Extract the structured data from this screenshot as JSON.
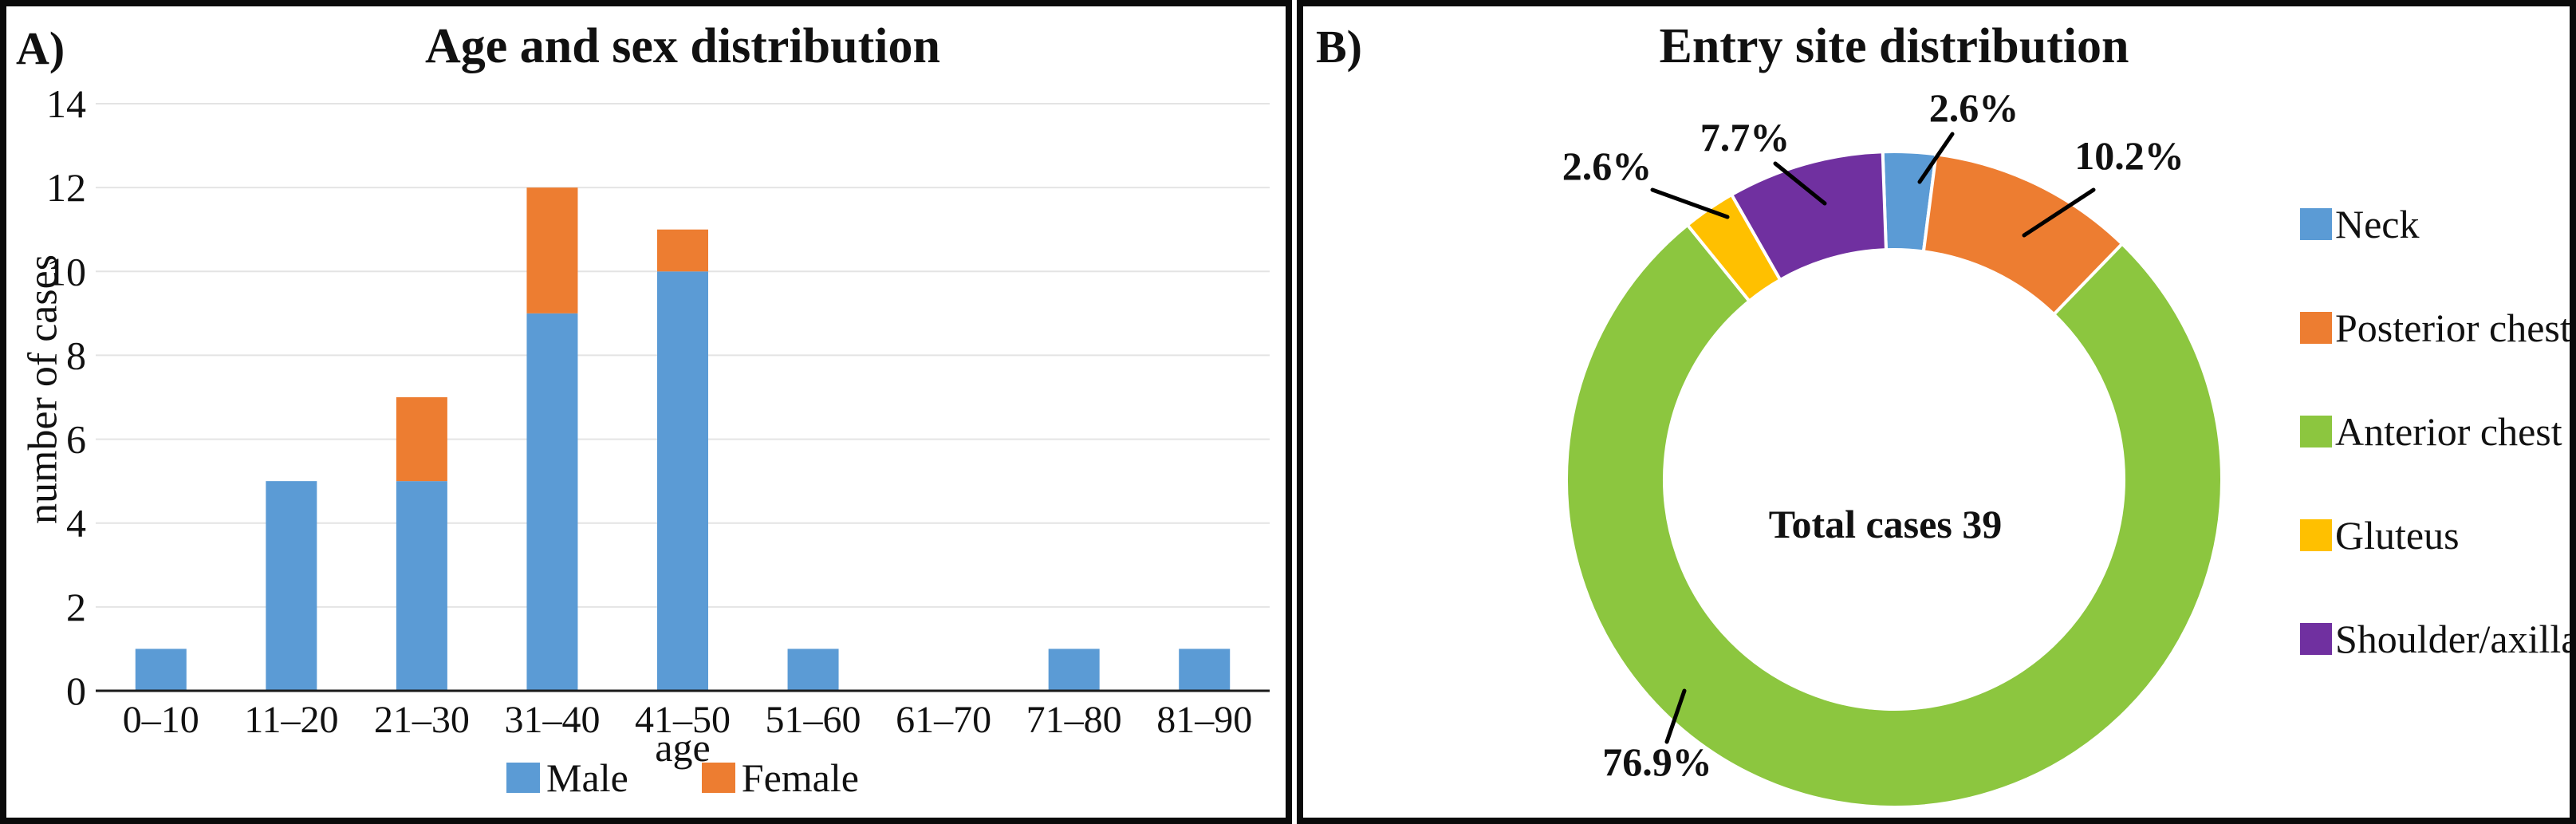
{
  "chart_data": [
    {
      "id": "age_sex",
      "type": "bar",
      "stacked": true,
      "panel_label": "A)",
      "title": "Age and sex distribution",
      "xlabel": "age",
      "ylabel": "number of cases",
      "categories": [
        "0–10",
        "11–20",
        "21–30",
        "31–40",
        "41–50",
        "51–60",
        "61–70",
        "71–80",
        "81–90"
      ],
      "series": [
        {
          "name": "Male",
          "color": "#5B9BD5",
          "values": [
            1,
            5,
            5,
            9,
            10,
            1,
            0,
            1,
            1
          ]
        },
        {
          "name": "Female",
          "color": "#ED7D31",
          "values": [
            0,
            0,
            2,
            3,
            1,
            0,
            0,
            0,
            0
          ]
        }
      ],
      "ylim": [
        0,
        14
      ],
      "ytick_step": 2,
      "yticks": [
        0,
        2,
        4,
        6,
        8,
        10,
        12,
        14
      ],
      "grid": true,
      "gridline_color": "#E4E4E4",
      "axis_color": "#1a1a1a",
      "legend_position": "bottom"
    },
    {
      "id": "entry_site",
      "type": "donut",
      "panel_label": "B)",
      "title": "Entry site distribution",
      "center_text": "Total cases 39",
      "start_angle_deg": -2,
      "legend_position": "right",
      "slices": [
        {
          "label": "Neck",
          "pct": 2.6,
          "pct_label": "2.6%",
          "color": "#5B9BD5",
          "callout": {
            "label_xy": [
              841,
              127
            ],
            "line": [
              [
                814,
                160
              ],
              [
                773,
                220
              ]
            ]
          }
        },
        {
          "label": "Posterior chest",
          "pct": 10.2,
          "pct_label": "10.2%",
          "color": "#ED7D31",
          "callout": {
            "label_xy": [
              1036,
              187
            ],
            "line": [
              [
                991,
                230
              ],
              [
                904,
                287
              ]
            ]
          }
        },
        {
          "label": "Anterior chest",
          "pct": 76.9,
          "pct_label": "76.9%",
          "color": "#8CC63F",
          "callout": {
            "label_xy": [
              444,
              947
            ],
            "line": [
              [
                478,
                858
              ],
              [
                456,
                922
              ]
            ]
          }
        },
        {
          "label": "Gluteus",
          "pct": 2.6,
          "pct_label": "2.6%",
          "color": "#FFC000",
          "callout": {
            "label_xy": [
              381,
              200
            ],
            "line": [
              [
                438,
                230
              ],
              [
                532,
                264
              ]
            ]
          }
        },
        {
          "label": "Shoulder/axilla",
          "pct": 7.7,
          "pct_label": "7.7%",
          "color": "#7030A0",
          "callout": {
            "label_xy": [
              554,
              164
            ],
            "line": [
              [
                592,
                197
              ],
              [
                654,
                247
              ]
            ]
          }
        }
      ]
    }
  ]
}
